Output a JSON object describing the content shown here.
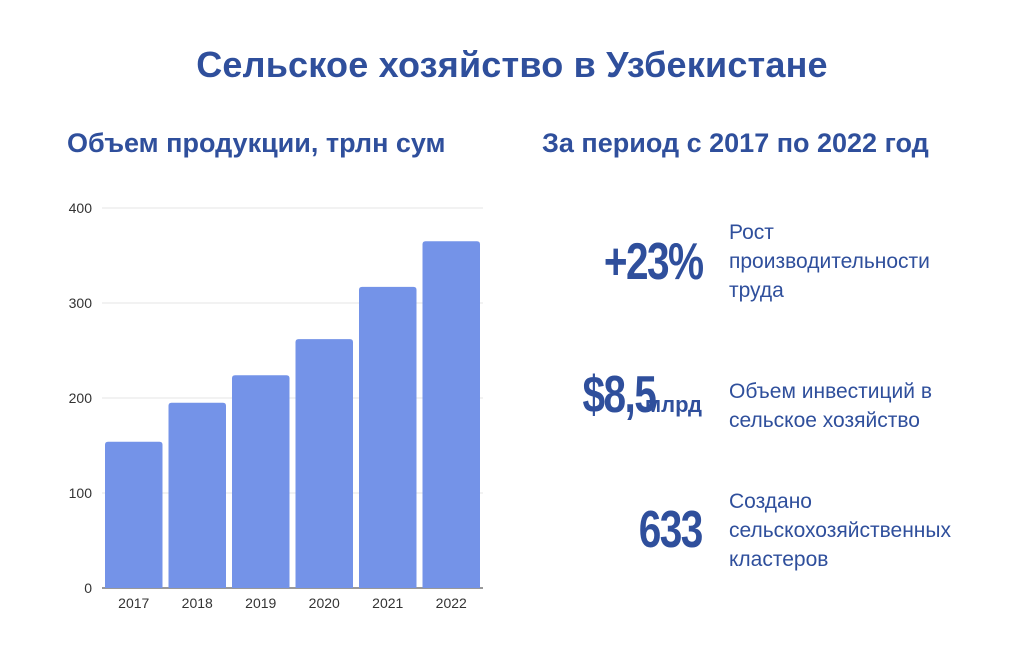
{
  "title": "Сельское хозяйство в Узбекистане",
  "left_heading": "Объем продукции, трлн сум",
  "right_heading": "За период с 2017 по 2022 год",
  "colors": {
    "heading": "#2f4f9c",
    "bar": "#7493e8"
  },
  "chart_data": {
    "type": "bar",
    "title": "Объем продукции, трлн сум",
    "categories": [
      "2017",
      "2018",
      "2019",
      "2020",
      "2021",
      "2022"
    ],
    "values": [
      154,
      195,
      224,
      262,
      317,
      365
    ],
    "ylim": [
      0,
      400
    ],
    "yticks": [
      "0",
      "100",
      "200",
      "300",
      "400"
    ],
    "grid": true,
    "xlabel": "",
    "ylabel": ""
  },
  "stats": [
    {
      "value": "+23%",
      "unit": "",
      "lines": [
        "Рост",
        "производительности",
        "труда"
      ]
    },
    {
      "value": "$8,5",
      "unit": "млрд",
      "lines": [
        "Объем инвестиций в",
        "сельское хозяйство"
      ]
    },
    {
      "value": "633",
      "unit": "",
      "lines": [
        "Создано",
        "сельскохозяйственных",
        "кластеров"
      ]
    }
  ]
}
